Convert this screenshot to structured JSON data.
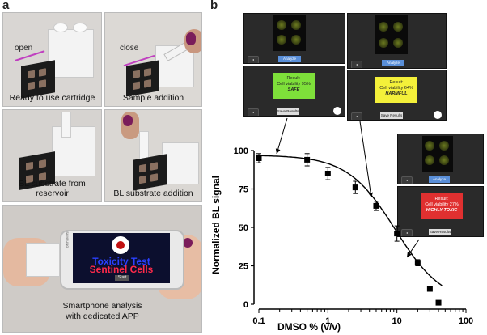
{
  "panel_a": {
    "letter": "a",
    "photos": [
      {
        "caption": "Ready to use cartridge",
        "label": "open"
      },
      {
        "caption": "Sample addition",
        "label": "close"
      },
      {
        "caption": "BL substrate from reservoir"
      },
      {
        "caption": "BL substrate addition"
      },
      {
        "caption": "Smartphone analysis\nwith dedicated APP"
      }
    ],
    "phone": {
      "brand": "SAMSUNG",
      "app_title": "Toxicity Test",
      "app_sub": "Sentinel Cells",
      "start": "Start"
    }
  },
  "panel_b": {
    "letter": "b",
    "screens": [
      {
        "analyze": "Analyze",
        "result_title": "Result:",
        "result_line": "Cell viability 95%",
        "verdict": "SAFE",
        "save": "Save Results",
        "color": "#7ee03a"
      },
      {
        "analyze": "Analyze",
        "result_title": "Result:",
        "result_line": "Cell viability 64%",
        "verdict": "HARMFUL",
        "save": "Save Results",
        "color": "#f4f03a"
      },
      {
        "analyze": "Analyze",
        "result_title": "Result:",
        "result_line": "Cell viability 27%",
        "verdict": "HIGHLY TOXIC",
        "save": "Save Results",
        "color": "#e03030"
      }
    ]
  },
  "chart_data": {
    "type": "scatter",
    "xlabel": "DMSO % (v/v)",
    "ylabel": "Normalized BL signal",
    "xscale": "log",
    "xlim": [
      0.1,
      100
    ],
    "ylim": [
      0,
      100
    ],
    "x_ticks": [
      "0.1",
      "1",
      "10",
      "100"
    ],
    "y_ticks": [
      "0",
      "25",
      "50",
      "75",
      "100"
    ],
    "points": [
      {
        "x": 0.1,
        "y": 95,
        "err": 3
      },
      {
        "x": 0.5,
        "y": 94,
        "err": 4
      },
      {
        "x": 1,
        "y": 85,
        "err": 4
      },
      {
        "x": 2.5,
        "y": 76,
        "err": 4
      },
      {
        "x": 5,
        "y": 64,
        "err": 3
      },
      {
        "x": 10,
        "y": 46,
        "err": 5
      },
      {
        "x": 20,
        "y": 27,
        "err": 2
      },
      {
        "x": 30,
        "y": 10,
        "err": 1
      },
      {
        "x": 40,
        "y": 1,
        "err": 1
      }
    ],
    "fit": "sigmoidal",
    "grid": false
  }
}
